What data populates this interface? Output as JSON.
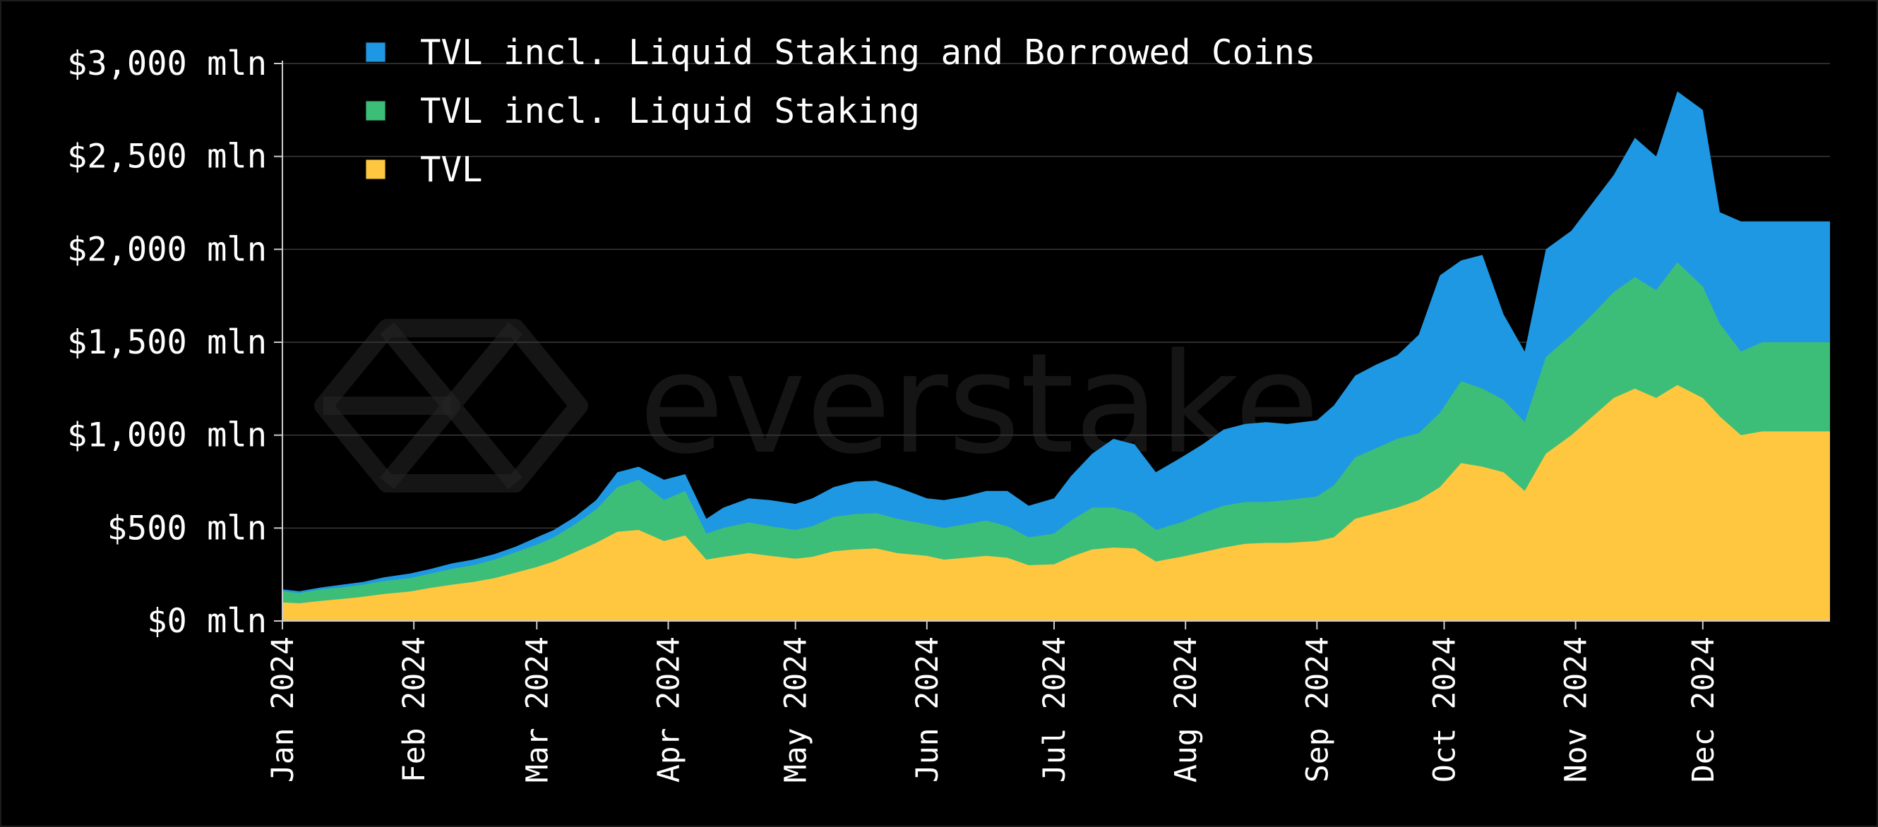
{
  "chart_data": {
    "type": "area",
    "stacked": true,
    "x": [
      "2024-01-01",
      "2024-01-05",
      "2024-01-10",
      "2024-01-15",
      "2024-01-20",
      "2024-01-25",
      "2024-01-31",
      "2024-02-05",
      "2024-02-10",
      "2024-02-15",
      "2024-02-20",
      "2024-02-25",
      "2024-03-01",
      "2024-03-05",
      "2024-03-10",
      "2024-03-15",
      "2024-03-20",
      "2024-03-25",
      "2024-03-31",
      "2024-04-05",
      "2024-04-10",
      "2024-04-14",
      "2024-04-20",
      "2024-04-25",
      "2024-05-01",
      "2024-05-05",
      "2024-05-10",
      "2024-05-15",
      "2024-05-20",
      "2024-05-25",
      "2024-06-01",
      "2024-06-05",
      "2024-06-10",
      "2024-06-15",
      "2024-06-20",
      "2024-06-25",
      "2024-07-01",
      "2024-07-05",
      "2024-07-10",
      "2024-07-15",
      "2024-07-20",
      "2024-07-25",
      "2024-07-31",
      "2024-08-05",
      "2024-08-10",
      "2024-08-15",
      "2024-08-20",
      "2024-08-25",
      "2024-09-01",
      "2024-09-05",
      "2024-09-10",
      "2024-09-15",
      "2024-09-20",
      "2024-09-25",
      "2024-09-30",
      "2024-10-05",
      "2024-10-10",
      "2024-10-15",
      "2024-10-20",
      "2024-10-25",
      "2024-10-31",
      "2024-11-05",
      "2024-11-10",
      "2024-11-15",
      "2024-11-20",
      "2024-11-25",
      "2024-12-01",
      "2024-12-05",
      "2024-12-10",
      "2024-12-15",
      "2024-12-20",
      "2024-12-25",
      "2024-12-31"
    ],
    "series": [
      {
        "name": "TVL",
        "color": "#ffc73f",
        "values": [
          100,
          95,
          108,
          118,
          130,
          145,
          158,
          178,
          195,
          210,
          230,
          260,
          290,
          320,
          370,
          420,
          480,
          490,
          430,
          460,
          330,
          345,
          365,
          350,
          335,
          345,
          375,
          385,
          390,
          365,
          350,
          330,
          340,
          350,
          340,
          300,
          305,
          345,
          385,
          395,
          390,
          320,
          345,
          370,
          395,
          415,
          420,
          420,
          430,
          450,
          550,
          580,
          610,
          650,
          720,
          850,
          830,
          800,
          700,
          900,
          1000,
          1100,
          1200,
          1250,
          1200,
          1270,
          1200,
          1100,
          1000,
          1020,
          1020,
          1020,
          1020
        ]
      },
      {
        "name": "TVL incl. Liquid Staking",
        "color": "#3dbe78",
        "values": [
          160,
          150,
          170,
          180,
          195,
          215,
          230,
          255,
          280,
          300,
          330,
          370,
          410,
          450,
          520,
          600,
          720,
          760,
          650,
          700,
          470,
          500,
          530,
          510,
          490,
          510,
          560,
          575,
          580,
          550,
          520,
          500,
          520,
          540,
          510,
          450,
          470,
          540,
          610,
          610,
          580,
          490,
          530,
          580,
          620,
          640,
          640,
          650,
          670,
          730,
          880,
          930,
          980,
          1010,
          1120,
          1290,
          1250,
          1190,
          1070,
          1420,
          1540,
          1650,
          1770,
          1850,
          1780,
          1930,
          1800,
          1600,
          1450,
          1500,
          1500,
          1500,
          1500
        ]
      },
      {
        "name": "TVL incl. Liquid Staking and Borrowed Coins",
        "color": "#1f98e4",
        "values": [
          170,
          160,
          180,
          195,
          210,
          235,
          255,
          280,
          310,
          330,
          360,
          400,
          450,
          490,
          560,
          650,
          800,
          830,
          760,
          790,
          550,
          610,
          660,
          650,
          630,
          660,
          720,
          750,
          755,
          720,
          660,
          650,
          670,
          700,
          700,
          620,
          660,
          780,
          900,
          980,
          950,
          800,
          880,
          950,
          1030,
          1060,
          1070,
          1060,
          1080,
          1160,
          1320,
          1380,
          1430,
          1540,
          1860,
          1940,
          1970,
          1650,
          1450,
          2000,
          2100,
          2250,
          2400,
          2600,
          2500,
          2850,
          2750,
          2200,
          2150,
          2150,
          2150,
          2150,
          2150
        ]
      }
    ],
    "ylim": [
      0,
      3000
    ],
    "xlim": [
      "2024-01-01",
      "2024-12-31"
    ],
    "ytick_values": [
      0,
      500,
      1000,
      1500,
      2000,
      2500,
      3000
    ],
    "ytick_labels": [
      "$0 mln",
      "$500 mln",
      "$1,000 mln",
      "$1,500 mln",
      "$2,000 mln",
      "$2,500 mln",
      "$3,000 mln"
    ],
    "xtick_dates": [
      "2024-01-01",
      "2024-02-01",
      "2024-03-01",
      "2024-04-01",
      "2024-05-01",
      "2024-06-01",
      "2024-07-01",
      "2024-08-01",
      "2024-09-01",
      "2024-10-01",
      "2024-11-01",
      "2024-12-01"
    ],
    "xtick_labels": [
      "Jan 2024",
      "Feb 2024",
      "Mar 2024",
      "Apr 2024",
      "May 2024",
      "Jun 2024",
      "Jul 2024",
      "Aug 2024",
      "Sep 2024",
      "Oct 2024",
      "Nov 2024",
      "Dec 2024"
    ],
    "grid": true,
    "legend": {
      "placement": "top-left",
      "entries": [
        {
          "label": "TVL incl. Liquid Staking and Borrowed Coins",
          "color": "#1f98e4"
        },
        {
          "label": "TVL incl. Liquid Staking",
          "color": "#3dbe78"
        },
        {
          "label": "TVL",
          "color": "#ffc73f"
        }
      ]
    },
    "title": "",
    "xlabel": "",
    "ylabel": ""
  },
  "watermark": {
    "text": "everstake",
    "icon": "hexagon-cube-logo-icon"
  },
  "colors": {
    "background": "#000000",
    "grid": "#3a3a3a",
    "axis": "#cccccc",
    "text": "#ffffff"
  }
}
